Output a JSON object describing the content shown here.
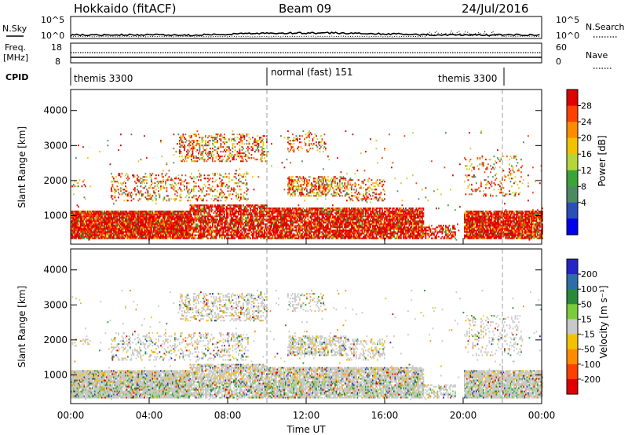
{
  "header": {
    "radar": "Hokkaido (fitACF)",
    "beam": "Beam 09",
    "date": "24/Jul/2016"
  },
  "top_panel": {
    "nsky_label": "N.Sky",
    "nsky_ticks": [
      "10^5",
      "10^0"
    ],
    "nsearch_label": "N.Search",
    "nsearch_ticks": [
      "10^5",
      "10^0"
    ],
    "freq_label": "Freq.",
    "freq_unit": "[MHz]",
    "freq_ticks": [
      "18",
      "8"
    ],
    "nave_label": "Nave",
    "nave_ticks": [
      "60",
      "0"
    ],
    "cpid_label": "CPID",
    "cpid_segments": [
      {
        "label": "themis 3300",
        "start_h": 0,
        "end_h": 10
      },
      {
        "label": "normal (fast) 151",
        "start_h": 10,
        "end_h": 22
      },
      {
        "label": "themis 3300",
        "start_h": 22,
        "end_h": 24
      }
    ]
  },
  "chart_data": [
    {
      "type": "heatmap",
      "name": "power",
      "ylabel": "Slant Range [km]",
      "ylim": [
        180,
        4600
      ],
      "y_ticks": [
        1000,
        2000,
        3000,
        4000
      ],
      "xlim_hours": [
        0,
        24
      ],
      "dashed_vlines_h": [
        10,
        22
      ],
      "colorbar": {
        "label": "Power [dB]",
        "ticks": [
          "28",
          "24",
          "20",
          "16",
          "12",
          "8",
          "4"
        ],
        "colors": [
          "#e00000",
          "#ff4000",
          "#ff8c00",
          "#f2c200",
          "#b5d63b",
          "#3aa33a",
          "#4c8a64",
          "#2a4fb8",
          "#0000ee"
        ]
      }
    },
    {
      "type": "heatmap",
      "name": "velocity",
      "ylabel": "Slant Range [km]",
      "ylim": [
        180,
        4600
      ],
      "y_ticks": [
        1000,
        2000,
        3000,
        4000
      ],
      "xlim_hours": [
        0,
        24
      ],
      "x_ticks": [
        "00:00",
        "04:00",
        "08:00",
        "12:00",
        "16:00",
        "20:00",
        "00:00"
      ],
      "xlabel": "Time UT",
      "dashed_vlines_h": [
        10,
        22
      ],
      "colorbar": {
        "label": "Velocity [m s⁻¹]",
        "ticks": [
          "200",
          "100",
          "50",
          "15",
          "-15",
          "-50",
          "-100",
          "-200"
        ],
        "colors": [
          "#2424c8",
          "#2e6ea8",
          "#2a8a3a",
          "#7acc3a",
          "#c8c8c8",
          "#f2c200",
          "#ff8c00",
          "#ff4000",
          "#e00000"
        ]
      }
    }
  ]
}
